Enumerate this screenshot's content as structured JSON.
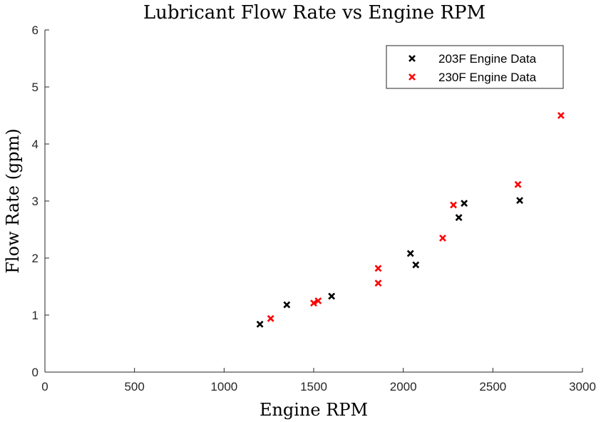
{
  "chart_data": {
    "type": "scatter",
    "title": "Lubricant Flow Rate vs Engine RPM",
    "xlabel": "Engine RPM",
    "ylabel": "Flow Rate (gpm)",
    "xlim": [
      0,
      3000
    ],
    "ylim": [
      0,
      6
    ],
    "xticks": [
      "0",
      "500",
      "1000",
      "1500",
      "2000",
      "2500",
      "3000"
    ],
    "yticks": [
      "0",
      "1",
      "2",
      "3",
      "4",
      "5",
      "6"
    ],
    "grid": false,
    "legend_position": "top-right",
    "series": [
      {
        "name": "203F Engine Data",
        "color": "#000000",
        "marker": "x",
        "x": [
          1200,
          1350,
          1600,
          2040,
          2070,
          2310,
          2340,
          2650
        ],
        "y": [
          0.84,
          1.18,
          1.33,
          2.08,
          1.88,
          2.71,
          2.96,
          3.01
        ]
      },
      {
        "name": "230F Engine Data",
        "color": "#ff0000",
        "marker": "x",
        "x": [
          1260,
          1500,
          1525,
          1860,
          1860,
          2220,
          2280,
          2640,
          2880
        ],
        "y": [
          0.94,
          1.21,
          1.25,
          1.82,
          1.56,
          2.35,
          2.93,
          3.29,
          4.5
        ]
      }
    ]
  }
}
